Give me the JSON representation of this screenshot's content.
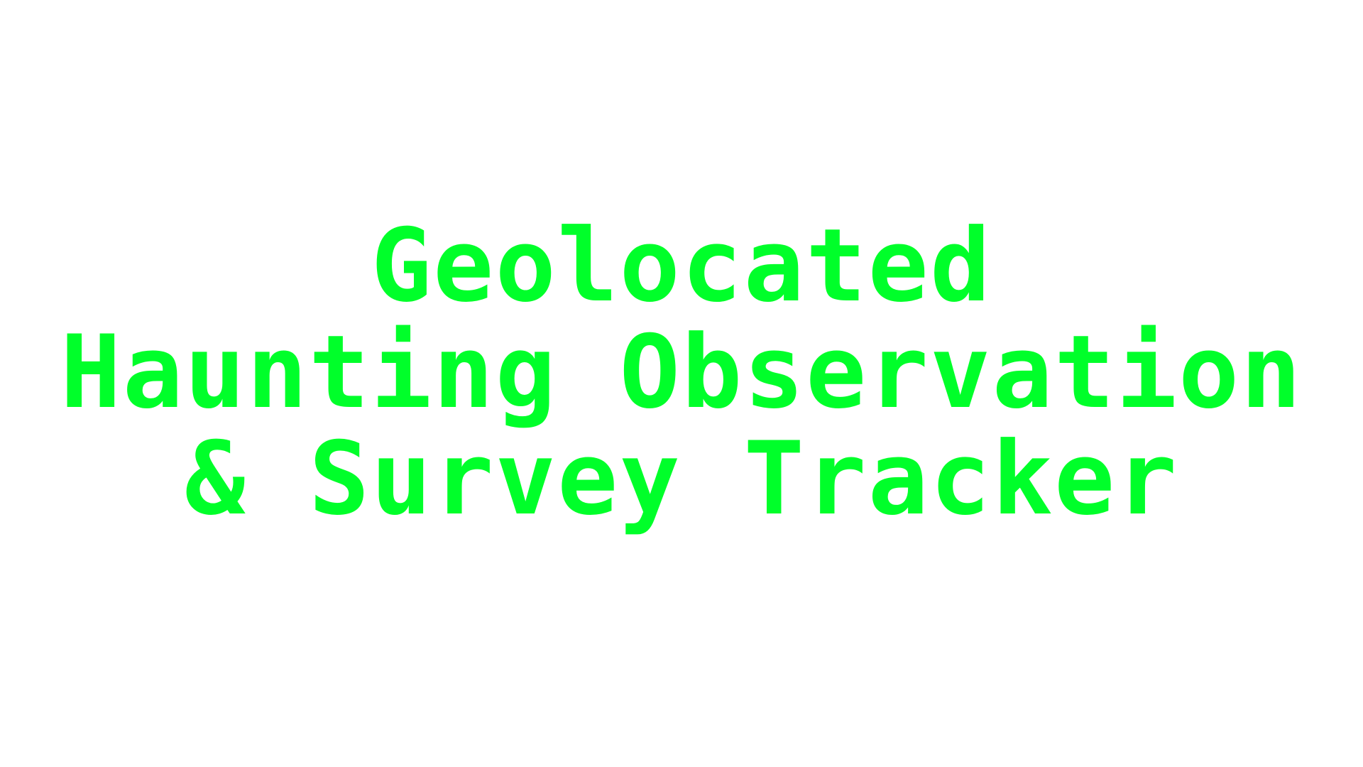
{
  "title": {
    "lines": [
      "Geolocated",
      "Haunting Observation",
      "& Survey Tracker"
    ]
  },
  "colors": {
    "background": "#ffffff",
    "text": "#00ff2a"
  }
}
